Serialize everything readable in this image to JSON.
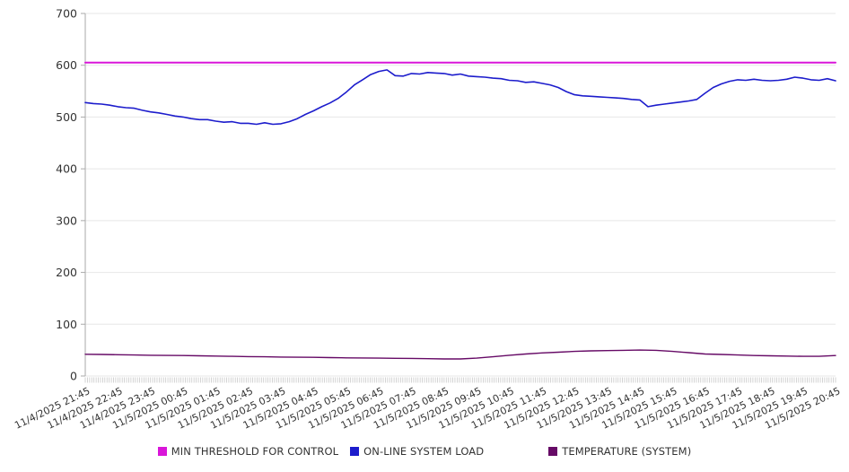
{
  "chart_data": {
    "type": "line",
    "title": "",
    "ylim": [
      0,
      700
    ],
    "y_ticks": [
      0,
      100,
      200,
      300,
      400,
      500,
      600,
      700
    ],
    "x_hours_span": 23,
    "minor_tick_minutes": 4,
    "x_tick_labels": [
      "11/4/2025 21:45",
      "11/4/2025 22:45",
      "11/4/2025 23:45",
      "11/5/2025 00:45",
      "11/5/2025 01:45",
      "11/5/2025 02:45",
      "11/5/2025 03:45",
      "11/5/2025 04:45",
      "11/5/2025 05:45",
      "11/5/2025 06:45",
      "11/5/2025 07:45",
      "11/5/2025 08:45",
      "11/5/2025 09:45",
      "11/5/2025 10:45",
      "11/5/2025 11:45",
      "11/5/2025 12:45",
      "11/5/2025 13:45",
      "11/5/2025 14:45",
      "11/5/2025 15:45",
      "11/5/2025 16:45",
      "11/5/2025 17:45",
      "11/5/2025 18:45",
      "11/5/2025 19:45",
      "11/5/2025 20:45"
    ],
    "series": [
      {
        "name": "MIN THRESHOLD FOR CONTROL",
        "color": "#d916d9",
        "stroke_width": 2,
        "x_step_hours": 23,
        "values": [
          605,
          605
        ]
      },
      {
        "name": "ON-LINE SYSTEM LOAD",
        "color": "#1c1ccc",
        "stroke_width": 1.6,
        "x_step_hours": 0.25,
        "values": [
          528,
          526,
          525,
          523,
          520,
          518,
          517,
          513,
          510,
          508,
          505,
          502,
          500,
          497,
          495,
          495,
          492,
          490,
          491,
          488,
          488,
          486,
          489,
          486,
          487,
          491,
          497,
          505,
          512,
          520,
          527,
          536,
          548,
          562,
          572,
          582,
          588,
          591,
          580,
          579,
          584,
          583,
          586,
          585,
          584,
          581,
          583,
          579,
          578,
          577,
          575,
          574,
          571,
          570,
          567,
          568,
          565,
          562,
          557,
          549,
          543,
          541,
          540,
          539,
          538,
          537,
          536,
          534,
          533,
          520,
          523,
          525,
          527,
          529,
          531,
          534,
          546,
          557,
          564,
          569,
          572,
          571,
          573,
          571,
          570,
          571,
          573,
          577,
          575,
          572,
          571,
          574,
          570
        ]
      },
      {
        "name": "TEMPERATURE (SYSTEM)",
        "color": "#660a66",
        "stroke_width": 1.4,
        "x_step_hours": 0.5,
        "values": [
          42,
          41.5,
          41,
          40.5,
          40,
          39.7,
          39.5,
          39,
          38.5,
          38,
          37.5,
          37,
          36.5,
          36.2,
          36,
          35.5,
          35,
          34.8,
          34.5,
          34.2,
          34,
          33.5,
          33,
          33,
          34.5,
          37,
          40,
          42.5,
          44.5,
          46,
          47.5,
          48.5,
          49,
          49.5,
          50,
          49.5,
          47.5,
          45,
          42.5,
          41.5,
          40.5,
          39.5,
          39,
          38.5,
          38,
          38,
          39.5
        ]
      }
    ],
    "legend_position": "bottom-center",
    "grid": "horizontal",
    "axis_color": "#aaaaaa",
    "gridline_color": "#e7e7e7",
    "tick_label_color": "#333333"
  }
}
